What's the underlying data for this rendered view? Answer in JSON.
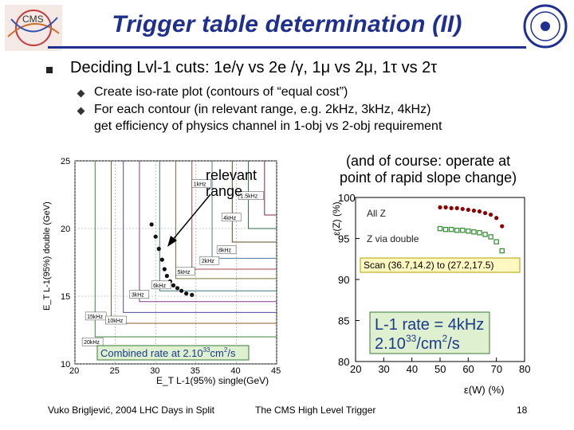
{
  "slide": {
    "title": "Trigger table determination (II)",
    "main_bullet": "Deciding Lvl-1 cuts: 1e/γ vs 2e /γ, 1μ vs 2μ, 1τ vs 2τ",
    "sub_bullets": [
      "Create iso-rate plot (contours of “equal cost”)",
      "For each contour (in relevant range, e.g. 2kHz, 3kHz, 4kHz)",
      "get efficiency of physics channel in 1-obj vs 2-obj requirement"
    ],
    "annotation_range": [
      "relevant",
      "range"
    ],
    "annotation_course": [
      "(and of course: operate at",
      "point of rapid slope change)"
    ],
    "footer": {
      "left": "Vuko Brigljević, 2004 LHC Days in Split",
      "center": "The CMS High Level Trigger",
      "page": "18"
    },
    "logos": {
      "left": "CMS",
      "right": "INSTITUT RUDJER BOSKOVIC"
    }
  },
  "chart_data": [
    {
      "type": "line",
      "xlabel": "E_T L-1(95%) single(GeV)",
      "ylabel": "E_T L-1(95%) double (GeV)",
      "xlim": [
        20,
        45
      ],
      "ylim": [
        10,
        25
      ],
      "x_ticks": [
        "20",
        "25",
        "30",
        "35",
        "40",
        "45"
      ],
      "y_ticks": [
        "10",
        "15",
        "20",
        "25"
      ],
      "grid": true,
      "contour_labels": [
        "1kHz",
        "1.5kHz",
        "2kHz",
        "3kHz",
        "4kHz",
        "5kHz",
        "6kHz",
        "8kHz",
        "10kHz",
        "15kHz",
        "20kHz"
      ],
      "scan_points_x": [
        29.5,
        30.0,
        30.4,
        30.8,
        31.1,
        31.4,
        31.8,
        32.2,
        32.7,
        33.2,
        33.8,
        34.5
      ],
      "scan_points_y": [
        20.3,
        19.4,
        18.5,
        17.7,
        17.0,
        16.5,
        16.1,
        15.8,
        15.6,
        15.4,
        15.2,
        15.1
      ],
      "box_label": "Combined rate at 2.10",
      "box_exp": "33",
      "box_unit": "cm",
      "box_unit_exp": "2",
      "box_suffix": "/s"
    },
    {
      "type": "scatter",
      "xlabel": "ε(W) (%)",
      "ylabel": "ε(Z) (%)",
      "xlim": [
        20,
        80
      ],
      "ylim": [
        80,
        100
      ],
      "x_ticks": [
        "20",
        "30",
        "40",
        "50",
        "60",
        "70",
        "80"
      ],
      "y_ticks": [
        "80",
        "85",
        "90",
        "95",
        "100"
      ],
      "series": [
        {
          "name": "All Z",
          "color": "#8b0000",
          "x": [
            50,
            52,
            54,
            56,
            58,
            60,
            62,
            64,
            66,
            68,
            70,
            72
          ],
          "y": [
            98.8,
            98.8,
            98.7,
            98.7,
            98.6,
            98.5,
            98.4,
            98.3,
            98.1,
            97.9,
            97.5,
            96.5
          ]
        },
        {
          "name": "Z via double",
          "color": "#2e8b2e",
          "x": [
            50,
            52,
            54,
            56,
            58,
            60,
            62,
            64,
            66,
            68,
            70,
            72
          ],
          "y": [
            96.2,
            96.1,
            96.1,
            96.0,
            96.0,
            95.9,
            95.8,
            95.7,
            95.5,
            95.2,
            94.6,
            93.5
          ]
        }
      ],
      "scan_label": "Scan (36.7,14.2) to (27.2,17.5)",
      "rate_label_1": "L-1 rate = 4kHz",
      "rate_label_2a": "2.10",
      "rate_label_2exp": "33",
      "rate_label_2b": "/cm",
      "rate_label_2exp2": "2",
      "rate_label_2c": "/s"
    }
  ]
}
